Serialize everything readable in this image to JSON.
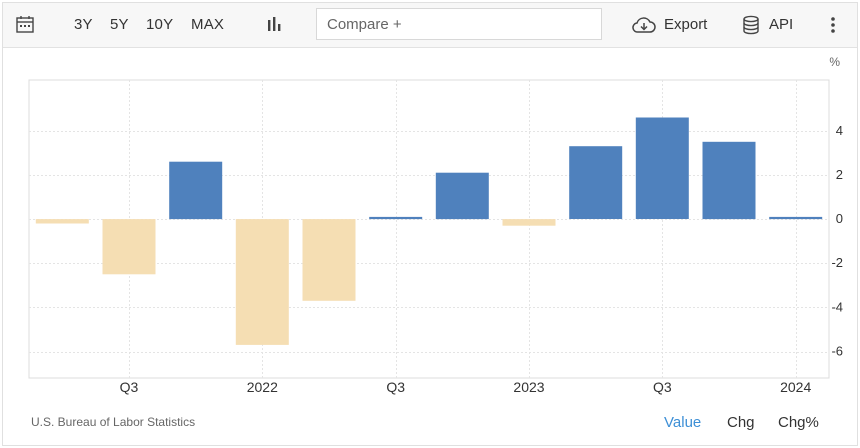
{
  "toolbar": {
    "ranges": [
      "3Y",
      "5Y",
      "10Y",
      "MAX"
    ],
    "compare_placeholder": "Compare +",
    "export_label": "Export",
    "api_label": "API",
    "icons": {
      "calendar": "calendar-icon",
      "chart_type": "bar-chart-icon",
      "export": "cloud-download-icon",
      "api": "database-icon",
      "menu": "more-vertical-icon"
    }
  },
  "chart_data": {
    "type": "bar",
    "unit_label": "%",
    "x_tick_labels": [
      "Q3",
      "2022",
      "Q3",
      "2023",
      "Q3",
      "2024"
    ],
    "y_ticks": [
      4,
      2,
      0,
      -2,
      -4,
      -6
    ],
    "ylim": [
      -7.2,
      6.3
    ],
    "grid": true,
    "values": [
      -0.2,
      -2.5,
      2.6,
      -5.7,
      -3.7,
      0.1,
      2.1,
      -0.3,
      3.3,
      4.6,
      3.5,
      0.1
    ],
    "colors": {
      "positive": "#4f81bd",
      "negative": "#f5deb3"
    }
  },
  "footer": {
    "source": "U.S. Bureau of Labor Statistics",
    "tabs": [
      "Value",
      "Chg",
      "Chg%"
    ],
    "active_tab": "Value",
    "active_color": "#3d8fd6"
  }
}
